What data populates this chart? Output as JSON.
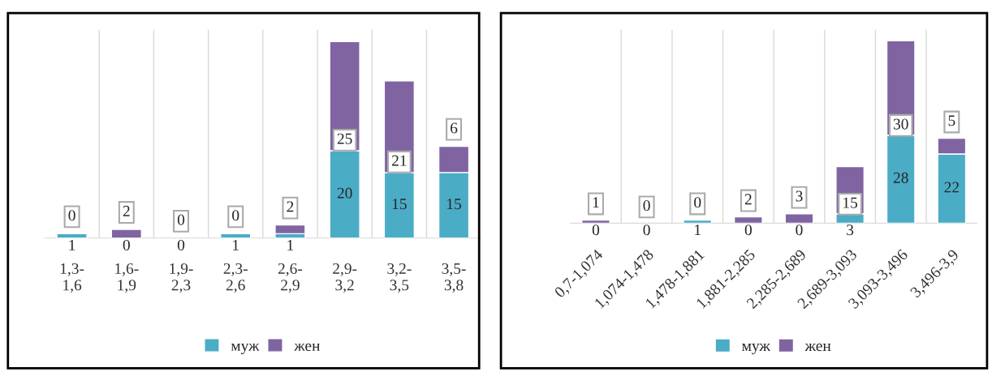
{
  "chart_data": [
    {
      "type": "bar",
      "stacked": true,
      "categories": [
        "1,3-\n1,6",
        "1,6-\n1,9",
        "1,9-\n2,3",
        "2,3-\n2,6",
        "2,6-\n2,9",
        "2,9-\n3,2",
        "3,2-\n3,5",
        "3,5-\n3,8"
      ],
      "series": [
        {
          "name": "муж",
          "color": "#4bacc6",
          "values": [
            1,
            0,
            0,
            1,
            1,
            20,
            15,
            15
          ]
        },
        {
          "name": "жен",
          "color": "#8064a2",
          "values": [
            0,
            2,
            0,
            0,
            2,
            25,
            21,
            6
          ]
        }
      ],
      "data_labels": true,
      "legend": "bottom",
      "grid": "x",
      "tick_labels": "x"
    },
    {
      "type": "bar",
      "stacked": true,
      "categories": [
        "0,7-1,074",
        "1,074-1,478",
        "1,478-1,881",
        "1,881-2,285",
        "2,285-2,689",
        "2,689-3,093",
        "3,093-3,496",
        "3,496-3,9"
      ],
      "series": [
        {
          "name": "муж",
          "color": "#4bacc6",
          "values": [
            0,
            0,
            1,
            0,
            0,
            3,
            28,
            22
          ]
        },
        {
          "name": "жен",
          "color": "#8064a2",
          "values": [
            1,
            0,
            0,
            2,
            3,
            15,
            30,
            5
          ]
        }
      ],
      "data_labels": true,
      "legend": "bottom",
      "grid": "x",
      "tick_labels": "x"
    }
  ]
}
